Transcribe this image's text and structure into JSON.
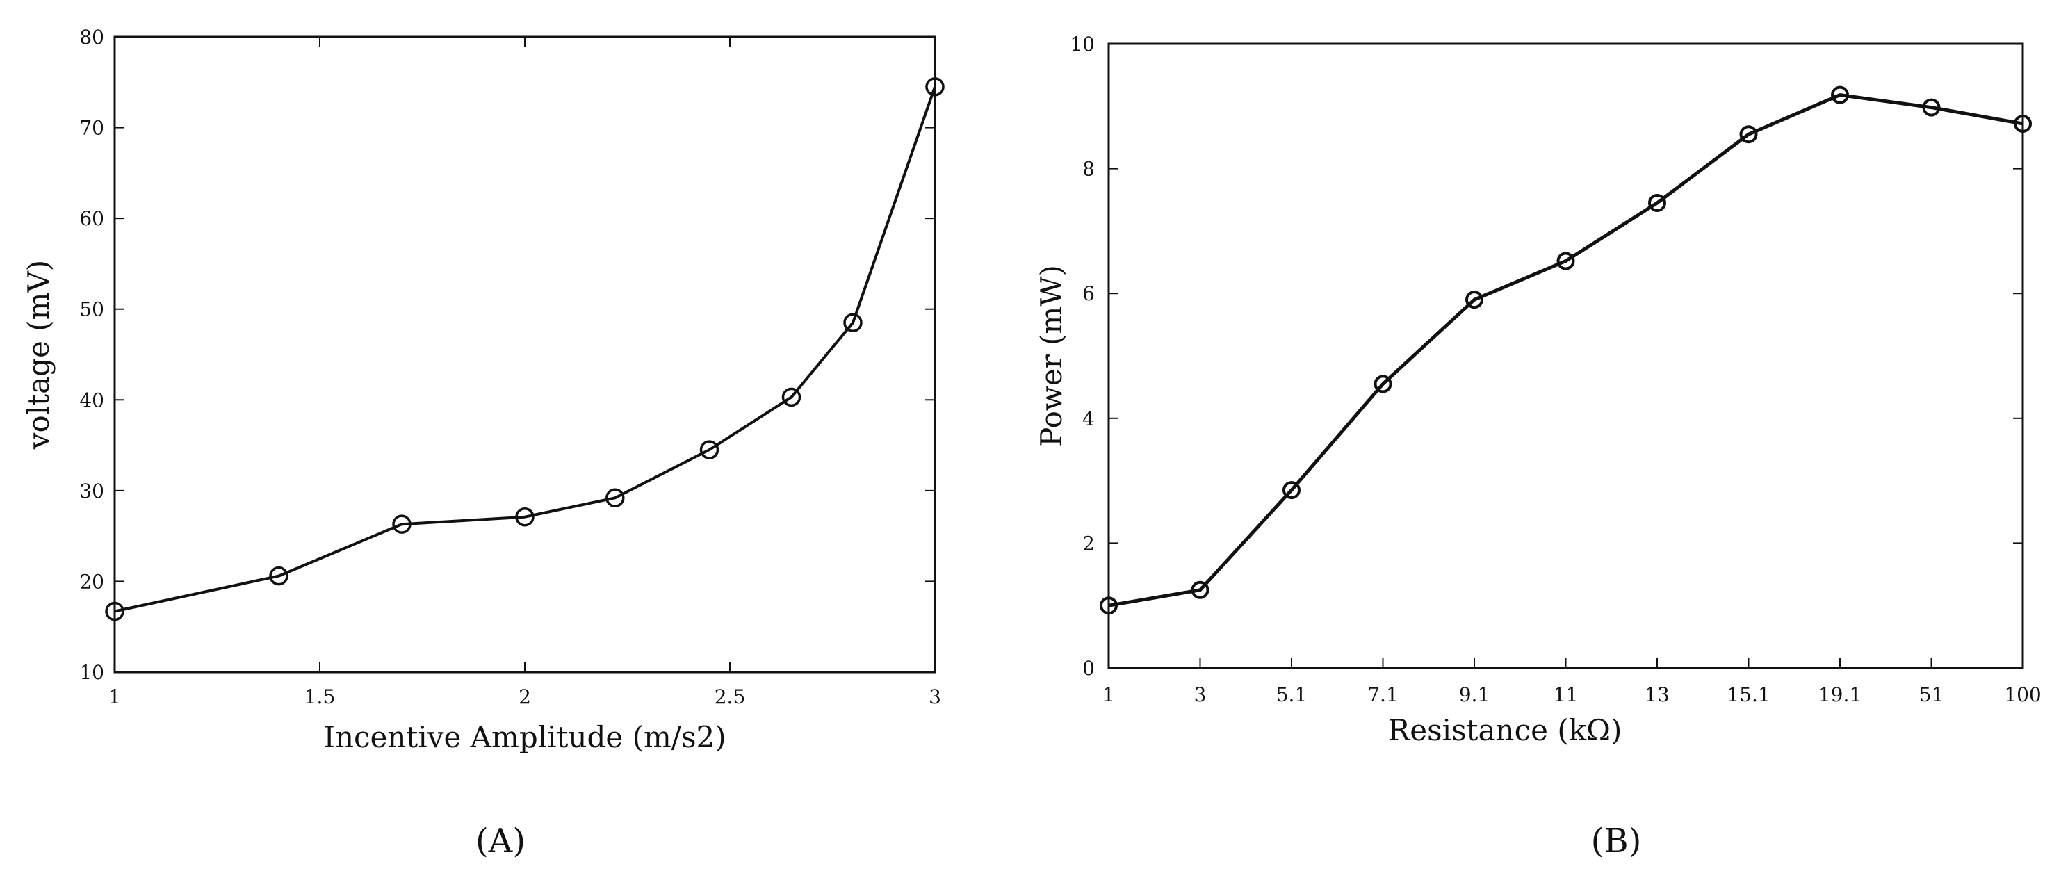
{
  "chart_data": [
    {
      "type": "line",
      "panel_label": "(A)",
      "xlabel": "Incentive Amplitude (m/s2)",
      "ylabel": "voltage (mV)",
      "xlim": [
        1,
        3
      ],
      "ylim": [
        10,
        80
      ],
      "x_ticks": [
        "1",
        "1.5",
        "2",
        "2.5",
        "3"
      ],
      "y_ticks": [
        "10",
        "20",
        "30",
        "40",
        "50",
        "60",
        "70",
        "80"
      ],
      "grid": false,
      "marker": "circle",
      "line_color": "#111111",
      "series": [
        {
          "x": [
            1.0,
            1.4,
            1.7,
            2.0,
            2.22,
            2.45,
            2.65,
            2.8,
            3.0
          ],
          "y": [
            16.7,
            20.6,
            26.3,
            27.1,
            29.2,
            34.5,
            40.3,
            48.5,
            74.5
          ]
        }
      ]
    },
    {
      "type": "line",
      "panel_label": "(B)",
      "xlabel": "Resistance (kΩ)",
      "ylabel": "Power (mW)",
      "categories": [
        "1",
        "3",
        "5.1",
        "7.1",
        "9.1",
        "11",
        "13",
        "15.1",
        "19.1",
        "51",
        "100"
      ],
      "ylim": [
        0,
        10
      ],
      "y_ticks": [
        "0",
        "2",
        "4",
        "6",
        "8",
        "10"
      ],
      "grid": false,
      "marker": "circle",
      "line_color": "#111111",
      "series": [
        {
          "values": [
            1.0,
            1.25,
            2.85,
            4.55,
            5.9,
            6.52,
            7.45,
            8.55,
            9.18,
            8.98,
            8.72
          ]
        }
      ]
    }
  ]
}
